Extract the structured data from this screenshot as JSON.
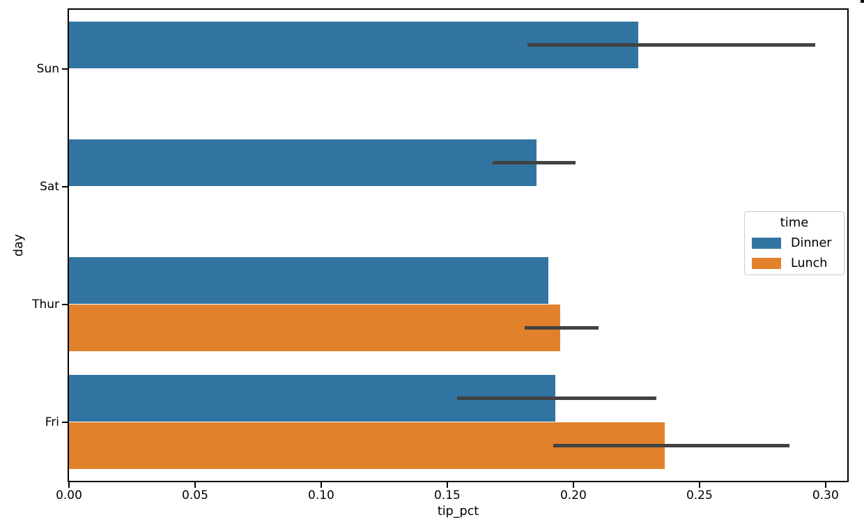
{
  "figure": {
    "background_color": "#ffffff",
    "spine_color": "#000000",
    "corner_artifact_color": "#000000"
  },
  "chart_data": {
    "type": "bar",
    "orientation": "horizontal",
    "title": "",
    "xlabel": "tip_pct",
    "ylabel": "day",
    "categories": [
      "Sun",
      "Sat",
      "Thur",
      "Fri"
    ],
    "series": [
      {
        "name": "Dinner",
        "color": "#3274a1",
        "values": [
          0.2257,
          0.1853,
          0.1901,
          0.1929
        ],
        "ci_low": [
          0.1818,
          0.1679,
          null,
          0.154
        ],
        "ci_high": [
          0.2958,
          0.2008,
          null,
          0.2329
        ]
      },
      {
        "name": "Lunch",
        "color": "#e1812c",
        "values": [
          null,
          null,
          0.1948,
          0.2361
        ],
        "ci_low": [
          null,
          null,
          0.1808,
          0.1921
        ],
        "ci_high": [
          null,
          null,
          0.2101,
          0.2858
        ]
      }
    ],
    "x_ticks": [
      0.0,
      0.05,
      0.1,
      0.15,
      0.2,
      0.25,
      0.3
    ],
    "x_tick_labels": [
      "0.00",
      "0.05",
      "0.10",
      "0.15",
      "0.20",
      "0.25",
      "0.30"
    ],
    "xlim": [
      0,
      0.3086
    ],
    "grid": false,
    "error_bar_color": "#424242",
    "legend": {
      "title": "time",
      "position": "center-right",
      "entries": [
        "Dinner",
        "Lunch"
      ]
    }
  }
}
